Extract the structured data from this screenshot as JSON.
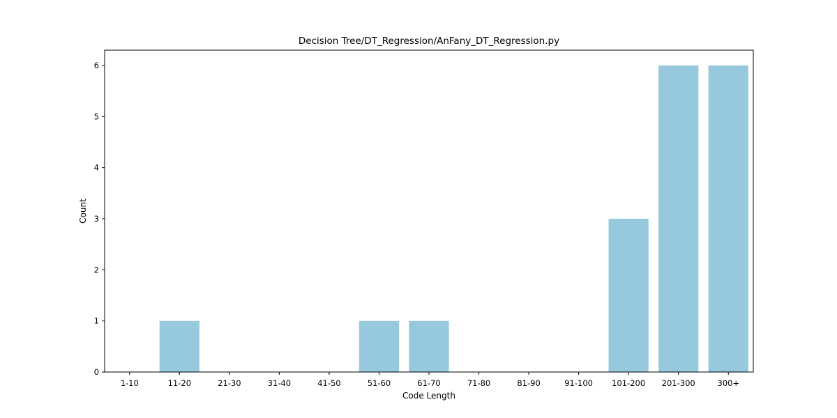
{
  "colors": {
    "bar": "#96c9dd",
    "axis": "#000000",
    "background": "#ffffff"
  },
  "chart_data": {
    "type": "bar",
    "title": "Decision Tree/DT_Regression/AnFany_DT_Regression.py",
    "xlabel": "Code Length",
    "ylabel": "Count",
    "categories": [
      "1-10",
      "11-20",
      "21-30",
      "31-40",
      "41-50",
      "51-60",
      "61-70",
      "71-80",
      "81-90",
      "91-100",
      "101-200",
      "201-300",
      "300+"
    ],
    "values": [
      0,
      1,
      0,
      0,
      0,
      1,
      1,
      0,
      0,
      0,
      3,
      6,
      6
    ],
    "ylim": [
      0,
      6.3
    ],
    "yticks": [
      0,
      1,
      2,
      3,
      4,
      5,
      6
    ],
    "grid": false,
    "legend": "none"
  }
}
